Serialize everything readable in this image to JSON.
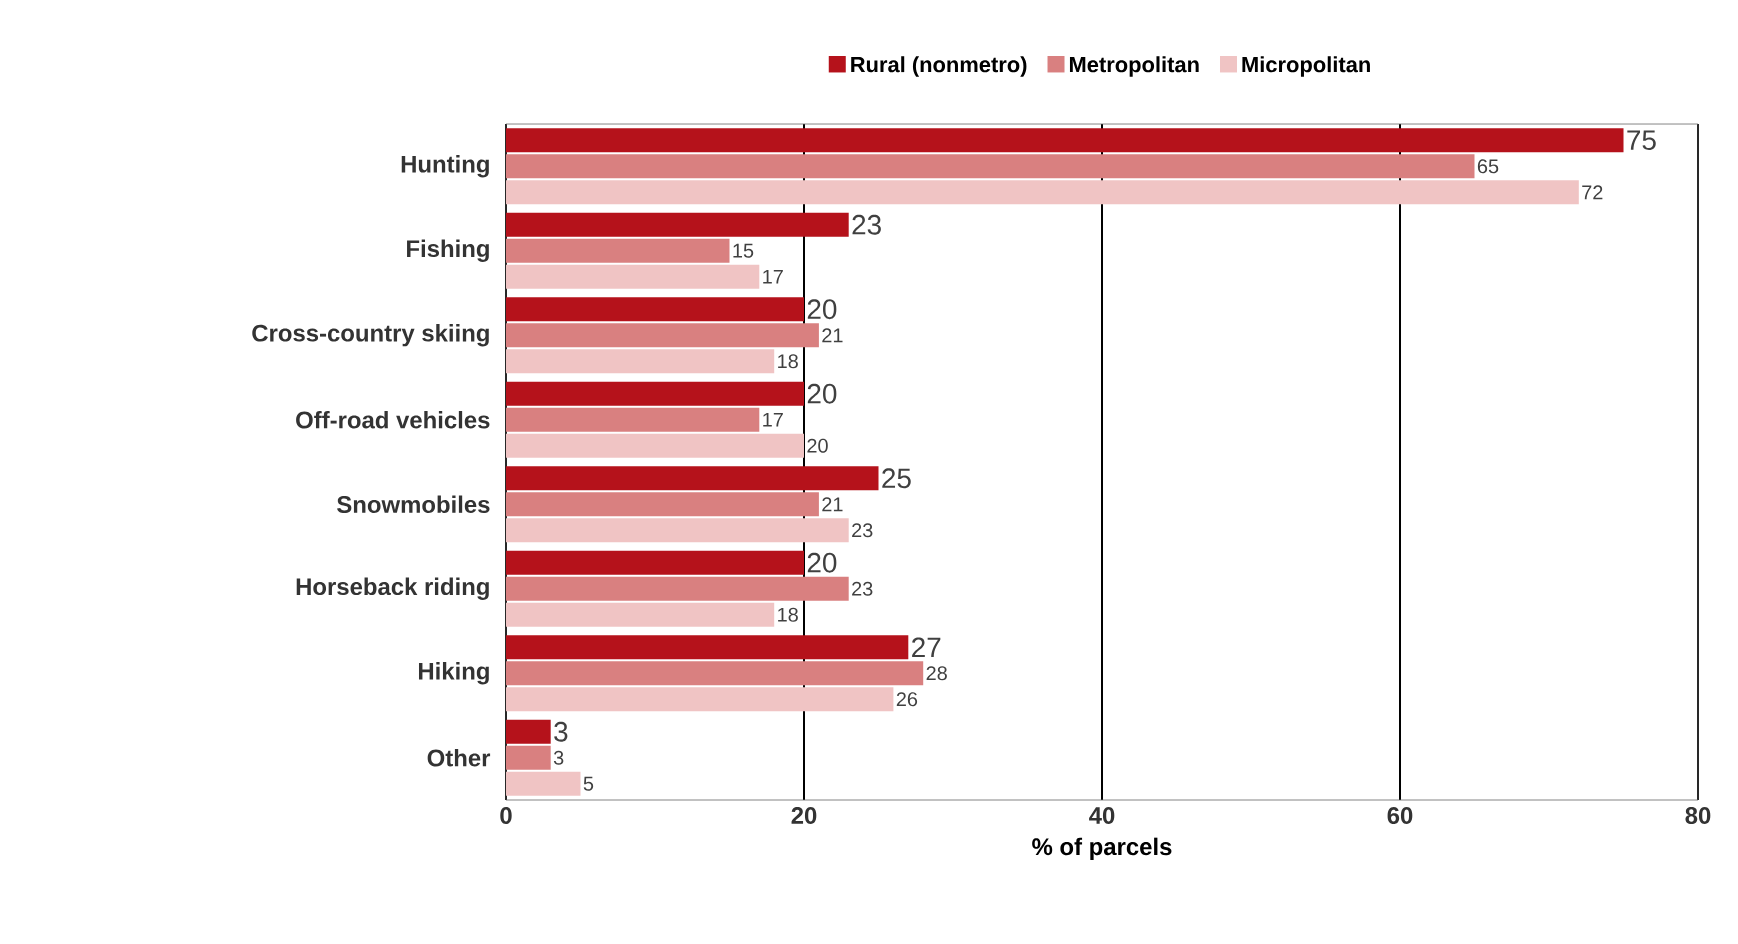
{
  "chart_data": {
    "type": "bar",
    "orientation": "horizontal",
    "xlabel": "% of parcels",
    "categories": [
      "Hunting",
      "Fishing",
      "Cross-country skiing",
      "Off-road vehicles",
      "Snowmobiles",
      "Horseback riding",
      "Hiking",
      "Other"
    ],
    "series": [
      {
        "name": "Rural (nonmetro)",
        "color": "#b5121b",
        "values": [
          75,
          23,
          20,
          20,
          25,
          20,
          27,
          3
        ]
      },
      {
        "name": "Metropolitan",
        "color": "#d98080",
        "values": [
          65,
          15,
          21,
          17,
          21,
          23,
          28,
          3
        ]
      },
      {
        "name": "Micropolitan",
        "color": "#f0c4c4",
        "values": [
          72,
          17,
          18,
          20,
          23,
          18,
          26,
          5
        ]
      }
    ],
    "xlim": [
      0,
      80
    ],
    "xticks": [
      0,
      20,
      40,
      60,
      80
    ],
    "grid": "x",
    "legend": "top",
    "data_labels": true
  }
}
